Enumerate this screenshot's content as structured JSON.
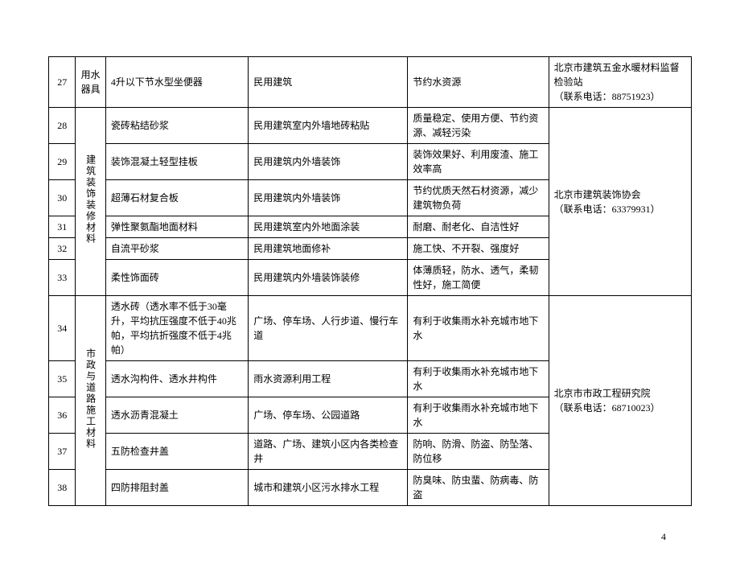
{
  "page_number": "4",
  "categories": {
    "cat1": "用水器具",
    "cat2": "建筑装饰装修材料",
    "cat3": "市政与道路施工材料"
  },
  "contacts": {
    "c1_line1": "北京市建筑五金水暖材料监督检验站",
    "c1_line2": "（联系电话：88751923）",
    "c2_line1": "北京市建筑装饰协会",
    "c2_line2": "（联系电话：63379931）",
    "c3_line1": "北京市市政工程研究院",
    "c3_line2": "（联系电话：68710023）"
  },
  "rows": {
    "r27": {
      "idx": "27",
      "product": "4升以下节水型坐便器",
      "scope": "民用建筑",
      "benefit": "节约水资源"
    },
    "r28": {
      "idx": "28",
      "product": "瓷砖粘结砂浆",
      "scope": "民用建筑室内外墙地砖粘贴",
      "benefit": "质量稳定、使用方便、节约资源、减轻污染"
    },
    "r29": {
      "idx": "29",
      "product": "装饰混凝土轻型挂板",
      "scope": "民用建筑内外墙装饰",
      "benefit": "装饰效果好、利用废渣、施工效率高"
    },
    "r30": {
      "idx": "30",
      "product": "超薄石材复合板",
      "scope": "民用建筑内外墙装饰",
      "benefit": "节约优质天然石材资源，减少建筑物负荷"
    },
    "r31": {
      "idx": "31",
      "product": "弹性聚氨酯地面材料",
      "scope": "民用建筑室内外地面涂装",
      "benefit": "耐磨、耐老化、自洁性好"
    },
    "r32": {
      "idx": "32",
      "product": "自流平砂浆",
      "scope": "民用建筑地面修补",
      "benefit": "施工快、不开裂、强度好"
    },
    "r33": {
      "idx": "33",
      "product": "柔性饰面砖",
      "scope": "民用建筑内外墙装饰装修",
      "benefit": "体薄质轻，防水、透气，柔韧性好，施工简便"
    },
    "r34": {
      "idx": "34",
      "product": "透水砖（透水率不低于30毫升，平均抗压强度不低于40兆帕，平均抗折强度不低于4兆帕）",
      "scope": "广场、停车场、人行步道、慢行车道",
      "benefit": "有利于收集雨水补充城市地下水"
    },
    "r35": {
      "idx": "35",
      "product": "透水沟构件、透水井构件",
      "scope": "雨水资源利用工程",
      "benefit": "有利于收集雨水补充城市地下水"
    },
    "r36": {
      "idx": "36",
      "product": "透水沥青混凝土",
      "scope": "广场、停车场、公园道路",
      "benefit": "有利于收集雨水补充城市地下水"
    },
    "r37": {
      "idx": "37",
      "product": "五防检查井盖",
      "scope": "道路、广场、建筑小区内各类检查井",
      "benefit": "防响、防滑、防盗、防坠落、防位移"
    },
    "r38": {
      "idx": "38",
      "product": "四防排阻封盖",
      "scope": "城市和建筑小区污水排水工程",
      "benefit": "防臭味、防虫蜚、防病毒、防盗"
    }
  }
}
